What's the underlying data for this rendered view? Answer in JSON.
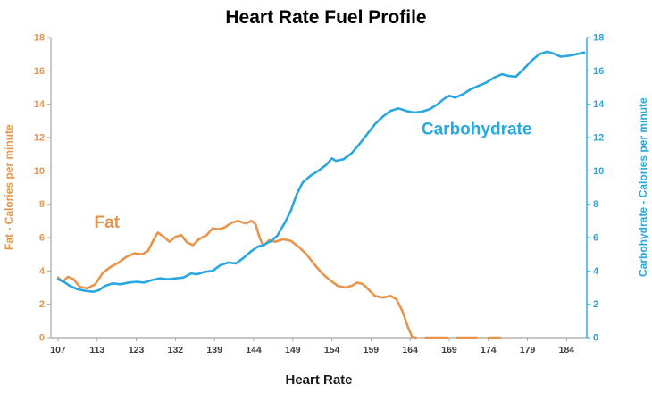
{
  "chart_data": {
    "type": "line",
    "title": "Heart Rate Fuel Profile",
    "xlabel": "Heart Rate",
    "ylabel_left": "Fat - Calories per minute",
    "ylabel_right": "Carbohydrate - Calories per minute",
    "x_ticks": [
      "107",
      "113",
      "123",
      "132",
      "139",
      "144",
      "149",
      "154",
      "159",
      "164",
      "169",
      "174",
      "179",
      "184"
    ],
    "y_ticks": [
      0,
      2,
      4,
      6,
      8,
      10,
      12,
      14,
      16,
      18
    ],
    "ylim": [
      0,
      18
    ],
    "grid": false,
    "legend": "inline-annotations",
    "colors": {
      "fat": "#E8944A",
      "carb": "#2AA7DE",
      "axis": "#a6a6a6",
      "tick_text": "#3d3d3d",
      "title": "#000000"
    },
    "annotations": [
      {
        "text": "Fat",
        "x": 1.25,
        "y": 6.6,
        "color": "#E8944A"
      },
      {
        "text": "Carbohydrate",
        "x": 10.7,
        "y": 12.2,
        "color": "#2AA7DE"
      }
    ],
    "series": [
      {
        "name": "Fat",
        "color": "#E8944A",
        "points": [
          [
            0,
            3.6
          ],
          [
            0.12,
            3.35
          ],
          [
            0.25,
            3.65
          ],
          [
            0.4,
            3.5
          ],
          [
            0.55,
            3.05
          ],
          [
            0.75,
            2.95
          ],
          [
            0.95,
            3.2
          ],
          [
            1.15,
            3.9
          ],
          [
            1.35,
            4.25
          ],
          [
            1.55,
            4.5
          ],
          [
            1.75,
            4.85
          ],
          [
            1.95,
            5.05
          ],
          [
            2.15,
            5.0
          ],
          [
            2.3,
            5.2
          ],
          [
            2.45,
            5.9
          ],
          [
            2.55,
            6.3
          ],
          [
            2.7,
            6.05
          ],
          [
            2.85,
            5.75
          ],
          [
            3.0,
            6.05
          ],
          [
            3.15,
            6.15
          ],
          [
            3.3,
            5.7
          ],
          [
            3.45,
            5.55
          ],
          [
            3.6,
            5.9
          ],
          [
            3.8,
            6.15
          ],
          [
            3.95,
            6.55
          ],
          [
            4.1,
            6.5
          ],
          [
            4.25,
            6.6
          ],
          [
            4.45,
            6.9
          ],
          [
            4.6,
            7.0
          ],
          [
            4.8,
            6.85
          ],
          [
            4.95,
            7.0
          ],
          [
            5.05,
            6.8
          ],
          [
            5.15,
            6.0
          ],
          [
            5.25,
            5.5
          ],
          [
            5.4,
            5.85
          ],
          [
            5.55,
            5.75
          ],
          [
            5.75,
            5.9
          ],
          [
            5.95,
            5.8
          ],
          [
            6.15,
            5.45
          ],
          [
            6.35,
            5.0
          ],
          [
            6.55,
            4.4
          ],
          [
            6.75,
            3.85
          ],
          [
            6.95,
            3.45
          ],
          [
            7.15,
            3.1
          ],
          [
            7.35,
            3.0
          ],
          [
            7.5,
            3.1
          ],
          [
            7.65,
            3.3
          ],
          [
            7.8,
            3.2
          ],
          [
            7.95,
            2.85
          ],
          [
            8.1,
            2.5
          ],
          [
            8.3,
            2.4
          ],
          [
            8.5,
            2.5
          ],
          [
            8.65,
            2.3
          ],
          [
            8.8,
            1.6
          ],
          [
            8.95,
            0.6
          ],
          [
            9.05,
            0.05
          ],
          [
            9.15,
            0
          ],
          null,
          [
            9.4,
            0
          ],
          [
            9.95,
            0
          ],
          null,
          [
            10.2,
            0
          ],
          [
            10.7,
            0
          ],
          null,
          [
            11.0,
            0
          ],
          [
            11.3,
            0
          ]
        ]
      },
      {
        "name": "Carbohydrate",
        "color": "#2AA7DE",
        "points": [
          [
            0,
            3.5
          ],
          [
            0.15,
            3.35
          ],
          [
            0.3,
            3.1
          ],
          [
            0.5,
            2.9
          ],
          [
            0.7,
            2.8
          ],
          [
            0.9,
            2.75
          ],
          [
            1.05,
            2.85
          ],
          [
            1.2,
            3.1
          ],
          [
            1.4,
            3.25
          ],
          [
            1.6,
            3.2
          ],
          [
            1.8,
            3.3
          ],
          [
            2.0,
            3.35
          ],
          [
            2.2,
            3.3
          ],
          [
            2.4,
            3.45
          ],
          [
            2.6,
            3.55
          ],
          [
            2.8,
            3.5
          ],
          [
            3.0,
            3.55
          ],
          [
            3.2,
            3.6
          ],
          [
            3.4,
            3.85
          ],
          [
            3.55,
            3.8
          ],
          [
            3.75,
            3.95
          ],
          [
            3.95,
            4.0
          ],
          [
            4.15,
            4.35
          ],
          [
            4.35,
            4.5
          ],
          [
            4.55,
            4.45
          ],
          [
            4.75,
            4.8
          ],
          [
            4.95,
            5.2
          ],
          [
            5.1,
            5.45
          ],
          [
            5.25,
            5.55
          ],
          [
            5.45,
            5.8
          ],
          [
            5.6,
            6.1
          ],
          [
            5.8,
            6.9
          ],
          [
            5.95,
            7.6
          ],
          [
            6.1,
            8.6
          ],
          [
            6.25,
            9.3
          ],
          [
            6.45,
            9.7
          ],
          [
            6.65,
            10.0
          ],
          [
            6.85,
            10.35
          ],
          [
            7.0,
            10.75
          ],
          [
            7.1,
            10.6
          ],
          [
            7.3,
            10.7
          ],
          [
            7.5,
            11.05
          ],
          [
            7.7,
            11.6
          ],
          [
            7.9,
            12.2
          ],
          [
            8.1,
            12.8
          ],
          [
            8.3,
            13.25
          ],
          [
            8.5,
            13.6
          ],
          [
            8.7,
            13.75
          ],
          [
            8.9,
            13.6
          ],
          [
            9.1,
            13.5
          ],
          [
            9.3,
            13.55
          ],
          [
            9.5,
            13.7
          ],
          [
            9.7,
            14.0
          ],
          [
            9.85,
            14.3
          ],
          [
            10.0,
            14.5
          ],
          [
            10.15,
            14.4
          ],
          [
            10.35,
            14.6
          ],
          [
            10.55,
            14.9
          ],
          [
            10.75,
            15.1
          ],
          [
            10.95,
            15.3
          ],
          [
            11.15,
            15.6
          ],
          [
            11.35,
            15.8
          ],
          [
            11.5,
            15.7
          ],
          [
            11.7,
            15.65
          ],
          [
            11.9,
            16.1
          ],
          [
            12.1,
            16.6
          ],
          [
            12.3,
            17.0
          ],
          [
            12.5,
            17.15
          ],
          [
            12.65,
            17.05
          ],
          [
            12.85,
            16.85
          ],
          [
            13.05,
            16.9
          ],
          [
            13.25,
            17.0
          ],
          [
            13.45,
            17.1
          ]
        ]
      }
    ]
  }
}
